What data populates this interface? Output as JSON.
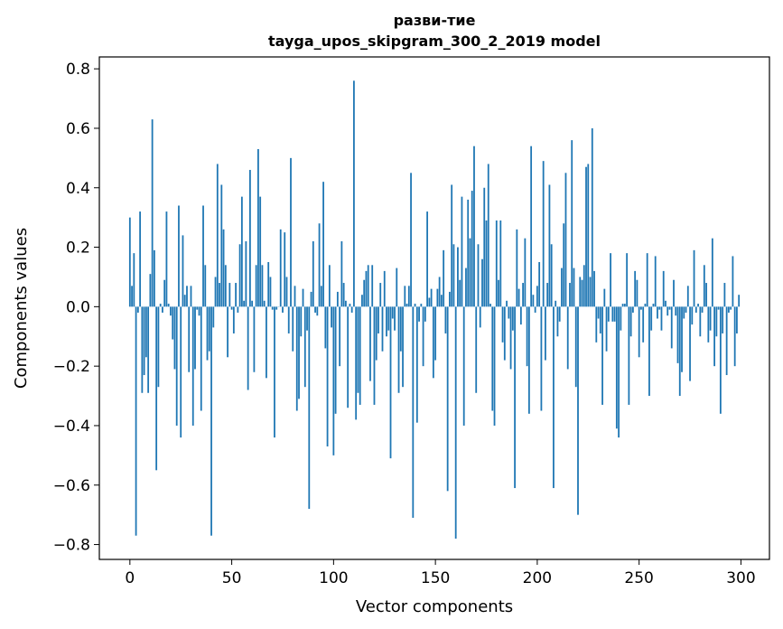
{
  "chart_data": {
    "type": "bar",
    "title": "разви-тие",
    "subtitle": "tayga_upos_skipgram_300_2_2019 model",
    "xlabel": "Vector components",
    "ylabel": "Components values",
    "xlim": [
      -15,
      314
    ],
    "ylim": [
      -0.85,
      0.84
    ],
    "xticks": [
      0,
      50,
      100,
      150,
      200,
      250,
      300
    ],
    "yticks": [
      -0.8,
      -0.6,
      -0.4,
      -0.2,
      0.0,
      0.2,
      0.4,
      0.6,
      0.8
    ],
    "ytick_labels": [
      "−0.8",
      "−0.6",
      "−0.4",
      "−0.2",
      "0.0",
      "0.2",
      "0.4",
      "0.6",
      "0.8"
    ],
    "bar_color": "#1f77b4",
    "values": [
      0.3,
      0.07,
      0.18,
      -0.77,
      -0.02,
      0.32,
      -0.29,
      -0.23,
      -0.17,
      -0.29,
      0.11,
      0.63,
      0.19,
      -0.55,
      -0.27,
      0.01,
      -0.02,
      0.09,
      0.32,
      0.01,
      -0.03,
      -0.11,
      -0.21,
      -0.4,
      0.34,
      -0.44,
      0.24,
      0.04,
      0.07,
      -0.22,
      0.07,
      -0.4,
      -0.21,
      -0.01,
      -0.03,
      -0.35,
      0.34,
      0.14,
      -0.18,
      -0.15,
      -0.77,
      -0.07,
      0.1,
      0.48,
      0.08,
      0.41,
      0.26,
      0.14,
      -0.17,
      0.08,
      -0.01,
      -0.09,
      0.08,
      -0.02,
      0.21,
      0.37,
      0.02,
      0.22,
      -0.28,
      0.46,
      0.02,
      -0.22,
      0.14,
      0.53,
      0.37,
      0.14,
      0.02,
      -0.24,
      0.15,
      0.1,
      -0.01,
      -0.44,
      -0.01,
      0.0,
      0.26,
      -0.02,
      0.25,
      0.1,
      -0.09,
      0.5,
      -0.15,
      0.07,
      -0.35,
      -0.31,
      -0.1,
      0.06,
      -0.27,
      -0.08,
      -0.68,
      0.05,
      0.22,
      -0.02,
      -0.03,
      0.28,
      0.07,
      0.42,
      -0.14,
      -0.47,
      0.14,
      -0.07,
      -0.5,
      -0.36,
      0.05,
      -0.2,
      0.22,
      0.08,
      0.02,
      -0.34,
      0.01,
      -0.02,
      0.76,
      -0.38,
      -0.29,
      -0.33,
      0.04,
      0.09,
      0.12,
      0.14,
      -0.25,
      0.14,
      -0.33,
      -0.18,
      -0.09,
      0.08,
      -0.15,
      0.12,
      -0.1,
      -0.08,
      -0.51,
      -0.04,
      -0.08,
      0.13,
      -0.29,
      -0.15,
      -0.27,
      0.07,
      0.01,
      0.07,
      0.45,
      -0.71,
      0.01,
      -0.39,
      -0.05,
      0.01,
      -0.2,
      -0.05,
      0.32,
      0.03,
      0.06,
      -0.24,
      -0.18,
      0.06,
      0.1,
      0.04,
      0.19,
      -0.09,
      -0.62,
      0.05,
      0.41,
      0.21,
      -0.78,
      0.2,
      0.09,
      0.37,
      -0.4,
      0.13,
      0.36,
      0.23,
      0.39,
      0.54,
      -0.29,
      0.21,
      -0.07,
      0.16,
      0.4,
      0.29,
      0.48,
      0.01,
      -0.35,
      -0.4,
      0.29,
      0.09,
      0.29,
      -0.12,
      -0.18,
      0.02,
      -0.04,
      -0.21,
      -0.08,
      -0.61,
      0.26,
      0.06,
      -0.06,
      0.08,
      0.23,
      -0.2,
      -0.36,
      0.54,
      0.04,
      -0.02,
      0.07,
      0.15,
      -0.35,
      0.49,
      -0.18,
      0.08,
      0.41,
      0.21,
      -0.61,
      0.02,
      -0.1,
      -0.05,
      0.13,
      0.28,
      0.45,
      -0.21,
      0.08,
      0.56,
      0.13,
      -0.27,
      -0.7,
      0.1,
      0.09,
      0.14,
      0.47,
      0.48,
      0.1,
      0.6,
      0.12,
      -0.12,
      -0.04,
      -0.09,
      -0.33,
      0.06,
      -0.15,
      -0.05,
      0.18,
      -0.05,
      -0.05,
      -0.41,
      -0.44,
      -0.08,
      0.01,
      0.01,
      0.18,
      -0.33,
      -0.1,
      -0.02,
      0.12,
      0.09,
      -0.17,
      -0.01,
      -0.12,
      0.01,
      0.18,
      -0.3,
      -0.08,
      0.01,
      0.17,
      -0.04,
      -0.01,
      -0.08,
      0.12,
      0.02,
      -0.03,
      -0.01,
      -0.14,
      0.09,
      -0.03,
      -0.19,
      -0.3,
      -0.22,
      -0.04,
      -0.02,
      0.07,
      -0.25,
      -0.06,
      0.19,
      -0.02,
      0.01,
      -0.1,
      -0.02,
      0.14,
      0.08,
      -0.12,
      -0.08,
      0.23,
      -0.2,
      -0.1,
      -0.01,
      -0.36,
      -0.09,
      0.08,
      -0.23,
      -0.02,
      -0.01,
      0.17,
      -0.2,
      -0.09,
      0.04
    ]
  }
}
